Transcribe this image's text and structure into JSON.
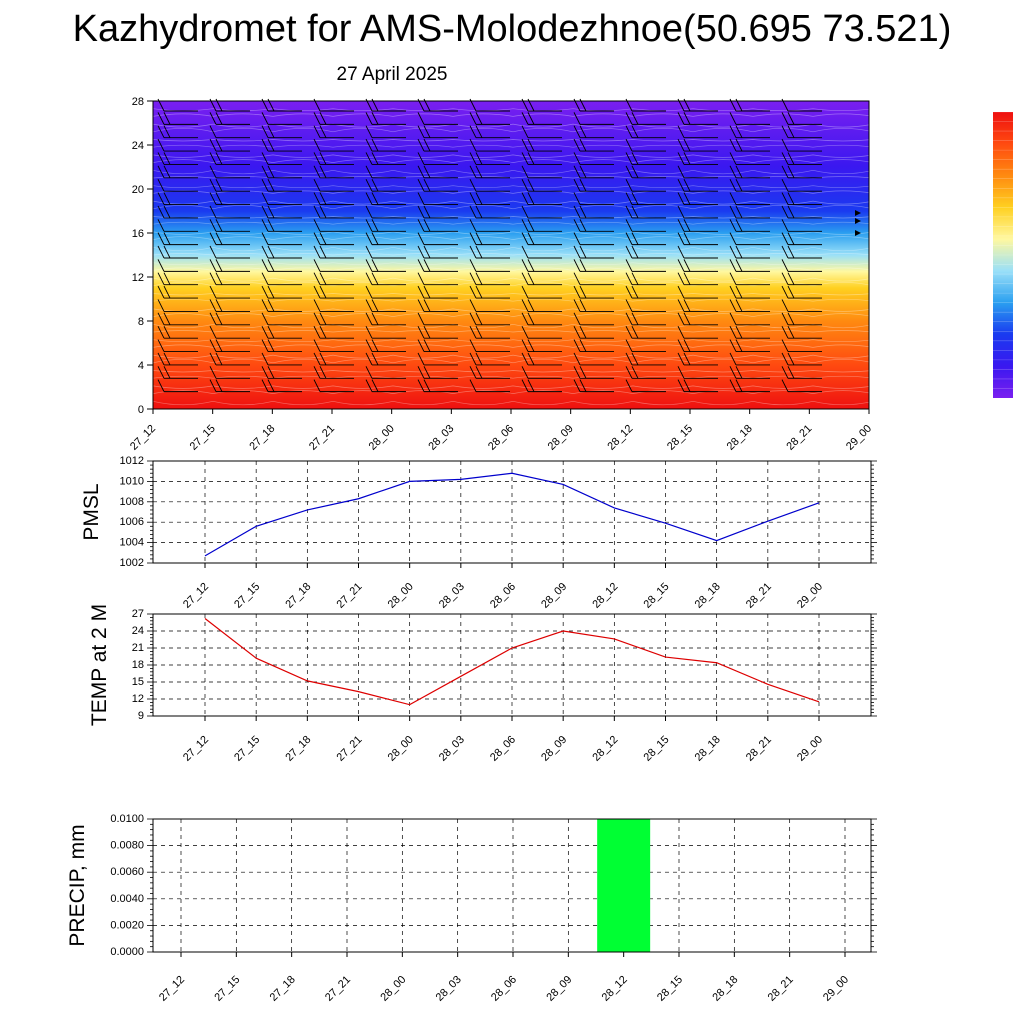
{
  "title": "Kazhydromet for AMS-Molodezhnoe(50.695 73.521)",
  "subtitle": "27 April 2025",
  "chart_data": [
    {
      "type": "heatmap",
      "name": "vertical-profile",
      "x": [
        "27_12",
        "27_15",
        "27_18",
        "27_21",
        "28_00",
        "28_03",
        "28_06",
        "28_09",
        "28_12",
        "28_15",
        "28_18",
        "28_21",
        "29_00"
      ],
      "ylim": [
        0,
        28
      ],
      "yticks": [
        0,
        4,
        8,
        12,
        16,
        20,
        24,
        28
      ],
      "colormap": [
        "#7a1ff0",
        "#3a18f0",
        "#1a3af0",
        "#2a9ff0",
        "#9ae0f8",
        "#fff8a0",
        "#ffd020",
        "#ff8a10",
        "#ff4a10",
        "#ee1010"
      ],
      "colormap_levels": [
        28,
        22,
        18,
        16,
        14,
        12.5,
        11,
        8,
        4,
        0
      ],
      "wind_barbs": true,
      "legend": "right"
    },
    {
      "type": "line",
      "name": "PMSL",
      "ylabel": "PMSL",
      "x": [
        "27_12",
        "27_15",
        "27_18",
        "27_21",
        "28_00",
        "28_03",
        "28_06",
        "28_09",
        "28_12",
        "28_15",
        "28_18",
        "28_21",
        "29_00"
      ],
      "values": [
        1002.7,
        1005.6,
        1007.2,
        1008.3,
        1010.0,
        1010.2,
        1010.8,
        1009.7,
        1007.4,
        1005.9,
        1004.2,
        1006.1,
        1007.9
      ],
      "ylim": [
        1002,
        1012
      ],
      "yticks": [
        1002,
        1004,
        1006,
        1008,
        1010,
        1012
      ],
      "color": "#0000cc",
      "grid": true
    },
    {
      "type": "line",
      "name": "TEMP",
      "ylabel": "TEMP at 2 M",
      "x": [
        "27_12",
        "27_15",
        "27_18",
        "27_21",
        "28_00",
        "28_03",
        "28_06",
        "28_09",
        "28_12",
        "28_15",
        "28_18",
        "28_21",
        "29_00"
      ],
      "values": [
        26.2,
        19.2,
        15.2,
        13.3,
        11.0,
        16.0,
        21.0,
        24.0,
        22.6,
        19.4,
        18.4,
        14.6,
        11.5
      ],
      "ylim": [
        9,
        27
      ],
      "yticks": [
        9,
        12,
        15,
        18,
        21,
        24,
        27
      ],
      "color": "#dd0000",
      "grid": true
    },
    {
      "type": "bar",
      "name": "PRECIP",
      "ylabel": "PRECIP, mm",
      "categories": [
        "27_12",
        "27_15",
        "27_18",
        "27_21",
        "28_00",
        "28_03",
        "28_06",
        "28_09",
        "28_12",
        "28_15",
        "28_18",
        "28_21",
        "29_00"
      ],
      "values": [
        0,
        0,
        0,
        0,
        0,
        0,
        0,
        0,
        0.01,
        0,
        0,
        0,
        0
      ],
      "ylim": [
        0,
        0.01
      ],
      "yticks": [
        "0.0000",
        "0.0020",
        "0.0040",
        "0.0060",
        "0.0080",
        "0.0100"
      ],
      "color": "#00ff33",
      "grid": true
    }
  ]
}
